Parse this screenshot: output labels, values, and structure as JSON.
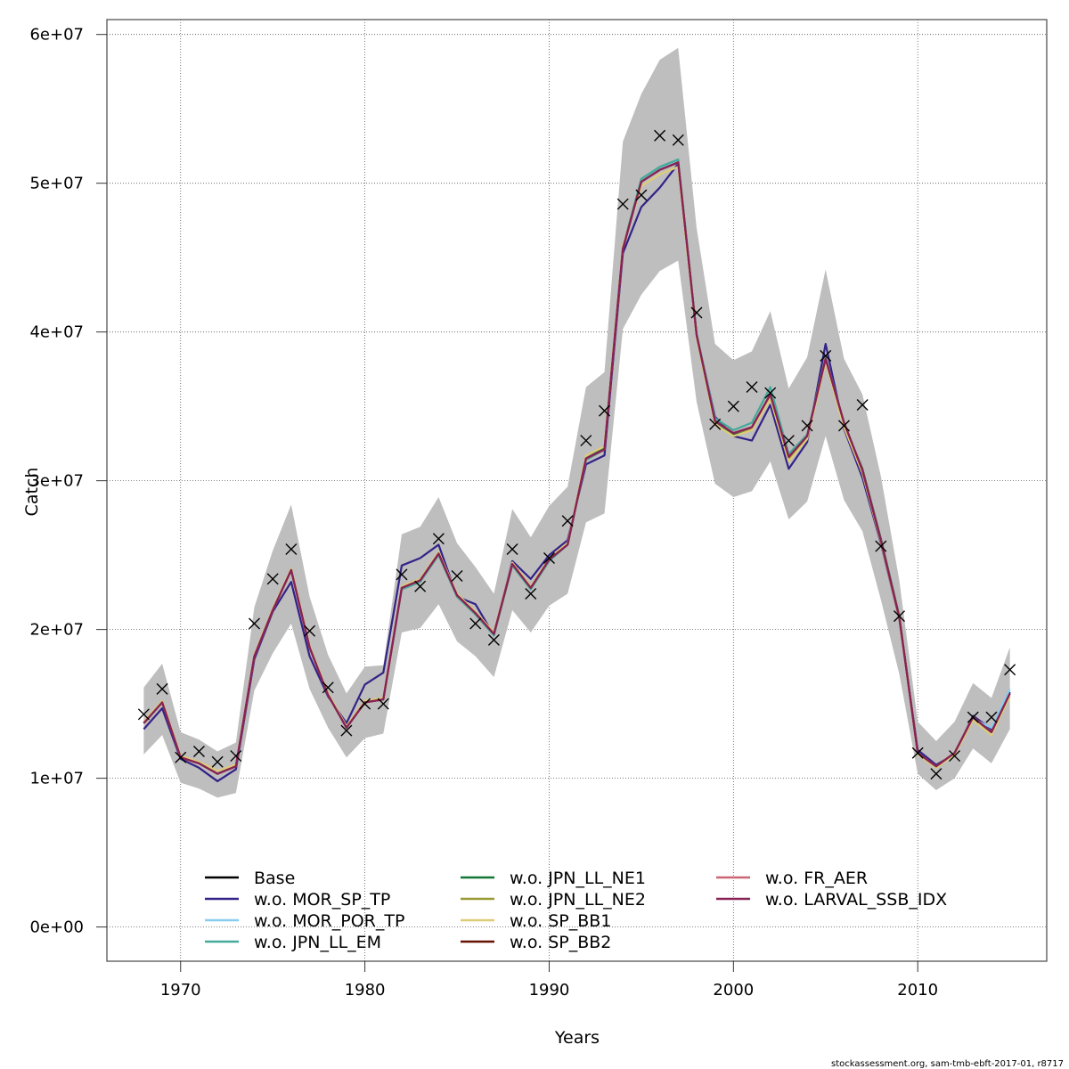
{
  "chart_data": {
    "type": "line",
    "title": "",
    "xlabel": "Years",
    "ylabel": "Catch",
    "xlim": [
      1966,
      2017
    ],
    "ylim": [
      -2300000,
      61000000
    ],
    "grid": true,
    "x_ticks": [
      1970,
      1980,
      1990,
      2000,
      2010
    ],
    "x_tick_labels": [
      "1970",
      "1980",
      "1990",
      "2000",
      "2010"
    ],
    "y_ticks": [
      0,
      10000000,
      20000000,
      30000000,
      40000000,
      50000000,
      60000000
    ],
    "y_tick_labels": [
      "0e+00",
      "1e+07",
      "2e+07",
      "3e+07",
      "4e+07",
      "5e+07",
      "6e+07"
    ],
    "legend_placement": "bottom",
    "footer_text": "stockassessment.org, sam-tmb-ebft-2017-01, r8717",
    "x": [
      1968,
      1969,
      1970,
      1971,
      1972,
      1973,
      1974,
      1975,
      1976,
      1977,
      1978,
      1979,
      1980,
      1981,
      1982,
      1983,
      1984,
      1985,
      1986,
      1987,
      1988,
      1989,
      1990,
      1991,
      1992,
      1993,
      1994,
      1995,
      1996,
      1997,
      1998,
      1999,
      2000,
      2001,
      2002,
      2003,
      2004,
      2005,
      2006,
      2007,
      2008,
      2009,
      2010,
      2011,
      2012,
      2013,
      2014,
      2015
    ],
    "observed": {
      "name": "Observed catch",
      "marker": "x",
      "values": [
        14.3,
        16.0,
        11.4,
        11.8,
        11.1,
        11.5,
        20.4,
        23.4,
        25.4,
        19.9,
        16.1,
        13.2,
        15.0,
        15.0,
        23.7,
        22.9,
        26.1,
        23.6,
        20.4,
        19.3,
        25.4,
        22.4,
        24.8,
        27.3,
        32.7,
        34.7,
        48.6,
        49.2,
        53.2,
        52.9,
        41.3,
        33.8,
        35.0,
        36.3,
        35.9,
        32.7,
        33.7,
        38.4,
        33.7,
        35.1,
        25.6,
        20.9,
        11.7,
        10.3,
        11.5,
        14.1,
        14.1,
        17.3
      ],
      "unit_multiplier": 1000000
    },
    "confidence_band": {
      "name": "Base 95% CI",
      "color": "#bebebe",
      "upper": [
        16.1,
        17.7,
        13.1,
        12.6,
        11.8,
        12.4,
        21.5,
        25.3,
        28.4,
        22.2,
        18.3,
        15.7,
        17.5,
        17.6,
        26.4,
        26.9,
        28.9,
        25.8,
        24.2,
        22.4,
        28.1,
        26.2,
        28.3,
        29.6,
        36.3,
        37.3,
        52.8,
        56.0,
        58.3,
        59.1,
        47.0,
        39.2,
        38.1,
        38.7,
        41.4,
        36.2,
        38.3,
        44.2,
        38.2,
        35.8,
        30.3,
        23.3,
        13.8,
        12.5,
        13.8,
        16.4,
        15.4,
        18.8
      ],
      "lower": [
        11.6,
        12.9,
        9.7,
        9.3,
        8.7,
        9.0,
        15.9,
        18.4,
        20.4,
        16.0,
        13.4,
        11.4,
        12.7,
        13.0,
        19.8,
        20.1,
        21.7,
        19.2,
        18.2,
        16.8,
        21.3,
        19.8,
        21.6,
        22.4,
        27.2,
        27.8,
        40.2,
        42.5,
        44.1,
        44.8,
        35.3,
        29.8,
        28.9,
        29.3,
        31.3,
        27.4,
        28.6,
        33.0,
        28.7,
        26.6,
        22.0,
        17.0,
        10.3,
        9.2,
        10.0,
        12.0,
        11.0,
        13.3
      ]
    },
    "series": [
      {
        "name": "Base",
        "color": "#000000",
        "values": [
          13.7,
          15.1,
          11.4,
          11.0,
          10.3,
          10.8,
          18.2,
          21.3,
          24.0,
          18.8,
          15.6,
          13.4,
          15.1,
          15.3,
          22.8,
          23.3,
          25.1,
          22.3,
          21.1,
          19.7,
          24.4,
          22.8,
          24.7,
          25.7,
          31.5,
          32.1,
          45.6,
          50.1,
          50.9,
          51.4,
          39.8,
          34.0,
          33.2,
          33.6,
          35.8,
          31.6,
          33.0,
          38.2,
          33.9,
          30.7,
          26.0,
          20.8,
          11.7,
          10.8,
          11.7,
          14.1,
          13.1,
          15.7
        ]
      },
      {
        "name": "w.o. MOR_SP_TP",
        "color": "#332288",
        "values": [
          13.3,
          14.7,
          11.3,
          10.7,
          9.8,
          10.6,
          18.0,
          21.2,
          23.2,
          18.2,
          15.5,
          13.7,
          16.3,
          17.1,
          24.3,
          24.8,
          25.7,
          22.2,
          21.7,
          19.6,
          24.6,
          23.4,
          25.0,
          26.0,
          31.1,
          31.7,
          45.3,
          48.4,
          49.7,
          51.3,
          39.8,
          34.3,
          33.0,
          32.7,
          35.1,
          30.8,
          32.6,
          39.2,
          33.5,
          30.2,
          25.8,
          20.7,
          11.9,
          10.9,
          11.6,
          14.2,
          13.3,
          15.8
        ]
      },
      {
        "name": "w.o. MOR_POR_TP",
        "color": "#88ccee",
        "values": [
          13.7,
          15.1,
          11.4,
          11.0,
          10.3,
          10.8,
          18.2,
          21.3,
          24.0,
          18.8,
          15.6,
          13.4,
          15.1,
          15.3,
          22.8,
          23.3,
          25.1,
          22.3,
          21.1,
          19.7,
          24.4,
          22.8,
          24.7,
          25.7,
          31.5,
          32.1,
          45.6,
          50.2,
          51.0,
          51.5,
          39.8,
          34.0,
          33.2,
          33.6,
          35.8,
          31.6,
          33.0,
          38.2,
          33.9,
          30.7,
          26.0,
          20.8,
          11.7,
          10.7,
          11.6,
          14.0,
          13.4,
          16.0
        ]
      },
      {
        "name": "w.o. JPN_LL_EM",
        "color": "#44aa99",
        "values": [
          13.7,
          15.1,
          11.4,
          11.0,
          10.3,
          10.8,
          18.2,
          21.3,
          24.0,
          18.8,
          15.6,
          13.4,
          15.1,
          15.3,
          22.7,
          23.2,
          25.0,
          22.2,
          21.0,
          19.6,
          24.3,
          22.7,
          24.6,
          25.7,
          31.4,
          32.1,
          45.7,
          50.3,
          51.1,
          51.6,
          39.9,
          34.2,
          33.4,
          33.9,
          36.3,
          31.8,
          33.1,
          38.3,
          33.9,
          30.7,
          26.0,
          20.8,
          11.7,
          10.8,
          11.7,
          14.1,
          13.1,
          15.7
        ]
      },
      {
        "name": "w.o. JPN_LL_NE1",
        "color": "#117733",
        "values": [
          13.7,
          15.1,
          11.4,
          11.0,
          10.3,
          10.8,
          18.2,
          21.3,
          24.0,
          18.8,
          15.6,
          13.4,
          15.1,
          15.3,
          22.8,
          23.3,
          25.1,
          22.3,
          21.1,
          19.7,
          24.4,
          22.8,
          24.7,
          25.7,
          31.5,
          32.2,
          45.7,
          50.1,
          50.9,
          51.4,
          39.8,
          34.0,
          33.1,
          33.5,
          35.8,
          31.4,
          32.9,
          38.1,
          33.8,
          30.8,
          26.1,
          20.9,
          11.7,
          10.8,
          11.7,
          14.1,
          13.1,
          15.7
        ]
      },
      {
        "name": "w.o. JPN_LL_NE2",
        "color": "#999933",
        "values": [
          13.7,
          15.1,
          11.4,
          11.0,
          10.3,
          10.8,
          18.2,
          21.3,
          24.0,
          18.8,
          15.6,
          13.4,
          15.1,
          15.3,
          22.8,
          23.3,
          25.1,
          22.3,
          21.1,
          19.7,
          24.4,
          22.8,
          24.7,
          25.7,
          31.5,
          32.1,
          45.6,
          50.1,
          50.9,
          51.4,
          39.8,
          34.0,
          33.2,
          33.5,
          35.7,
          31.5,
          33.0,
          38.2,
          33.9,
          30.7,
          26.0,
          20.8,
          11.7,
          10.8,
          11.7,
          14.1,
          13.1,
          15.7
        ]
      },
      {
        "name": "w.o. SP_BB1",
        "color": "#ddcc77",
        "values": [
          13.8,
          15.2,
          11.5,
          11.1,
          10.5,
          10.9,
          18.3,
          21.4,
          24.1,
          18.9,
          15.7,
          13.5,
          15.2,
          15.4,
          22.9,
          23.4,
          25.2,
          22.4,
          21.2,
          19.8,
          24.5,
          22.9,
          24.8,
          25.8,
          31.7,
          32.3,
          45.8,
          49.8,
          50.6,
          51.1,
          39.6,
          33.8,
          33.0,
          33.4,
          35.5,
          31.3,
          32.8,
          38.0,
          33.6,
          30.5,
          25.9,
          20.7,
          11.6,
          10.7,
          11.6,
          13.9,
          12.9,
          15.5
        ]
      },
      {
        "name": "w.o. SP_BB2",
        "color": "#661100",
        "values": [
          13.7,
          15.1,
          11.4,
          11.0,
          10.3,
          10.8,
          18.2,
          21.3,
          24.0,
          18.8,
          15.6,
          13.4,
          15.1,
          15.3,
          22.8,
          23.3,
          25.1,
          22.3,
          21.1,
          19.7,
          24.4,
          22.8,
          24.7,
          25.7,
          31.5,
          32.1,
          45.6,
          50.1,
          50.9,
          51.4,
          39.8,
          34.0,
          33.2,
          33.6,
          35.8,
          31.6,
          33.0,
          38.2,
          33.9,
          30.7,
          26.0,
          20.8,
          11.7,
          10.8,
          11.7,
          14.1,
          13.1,
          15.7
        ]
      },
      {
        "name": "w.o. FR_AER",
        "color": "#cc6677",
        "values": [
          13.7,
          15.1,
          11.4,
          11.0,
          10.3,
          10.8,
          18.2,
          21.3,
          24.0,
          18.8,
          15.6,
          13.4,
          15.1,
          15.3,
          22.8,
          23.3,
          25.1,
          22.3,
          21.1,
          19.7,
          24.4,
          22.8,
          24.7,
          25.7,
          31.5,
          32.1,
          45.6,
          50.1,
          50.9,
          51.4,
          39.8,
          34.0,
          33.2,
          33.6,
          35.8,
          31.6,
          33.0,
          38.2,
          33.9,
          30.7,
          26.0,
          20.8,
          11.7,
          10.8,
          11.7,
          14.1,
          13.1,
          15.7
        ]
      },
      {
        "name": "w.o. LARVAL_SSB_IDX",
        "color": "#882255",
        "values": [
          13.7,
          15.1,
          11.4,
          11.0,
          10.3,
          10.8,
          18.2,
          21.3,
          24.0,
          18.8,
          15.6,
          13.4,
          15.1,
          15.3,
          22.8,
          23.3,
          25.1,
          22.3,
          21.1,
          19.7,
          24.4,
          22.8,
          24.7,
          25.7,
          31.5,
          32.1,
          45.6,
          50.1,
          50.9,
          51.4,
          39.8,
          34.0,
          33.2,
          33.6,
          35.8,
          31.6,
          33.0,
          38.2,
          33.9,
          30.7,
          26.0,
          20.8,
          11.7,
          10.8,
          11.7,
          14.1,
          13.1,
          15.7
        ]
      }
    ],
    "series_unit_multiplier": 1000000
  }
}
